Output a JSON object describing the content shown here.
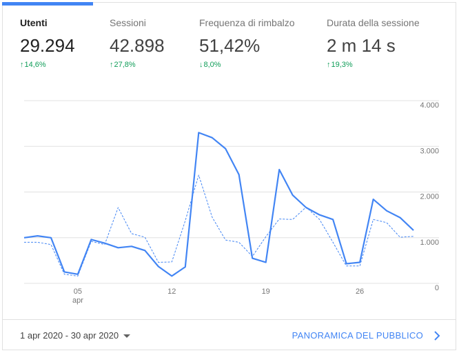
{
  "metrics": [
    {
      "label": "Utenti",
      "value": "29.294",
      "delta": "14,6%",
      "direction": "up",
      "active": true
    },
    {
      "label": "Sessioni",
      "value": "42.898",
      "delta": "27,8%",
      "direction": "up",
      "active": false
    },
    {
      "label": "Frequenza di rimbalzo",
      "value": "51,42%",
      "delta": "8,0%",
      "direction": "down",
      "active": false
    },
    {
      "label": "Durata della sessione",
      "value": "2 m 14 s",
      "delta": "19,3%",
      "direction": "up",
      "active": false
    }
  ],
  "chart_data": {
    "type": "line",
    "x": [
      1,
      2,
      3,
      4,
      5,
      6,
      7,
      8,
      9,
      10,
      11,
      12,
      13,
      14,
      15,
      16,
      17,
      18,
      19,
      20,
      21,
      22,
      23,
      24,
      25,
      26,
      27,
      28,
      29,
      30
    ],
    "x_tick_labels": [
      {
        "x": 5,
        "label": "05",
        "sublabel": "apr"
      },
      {
        "x": 12,
        "label": "12"
      },
      {
        "x": 19,
        "label": "19"
      },
      {
        "x": 26,
        "label": "26"
      }
    ],
    "y_tick_labels": [
      "0",
      "1.000",
      "2.000",
      "3.000",
      "4.000"
    ],
    "ylim": [
      0,
      4000
    ],
    "grid": true,
    "series": [
      {
        "color": "#4285f4",
        "dashed": false,
        "values": [
          1000,
          1040,
          1000,
          250,
          200,
          960,
          880,
          780,
          810,
          720,
          370,
          160,
          360,
          3300,
          3190,
          2950,
          2380,
          550,
          460,
          2490,
          1930,
          1660,
          1500,
          1400,
          430,
          460,
          1840,
          1590,
          1440,
          1160
        ]
      },
      {
        "color": "#4285f4",
        "dashed": true,
        "values": [
          900,
          900,
          850,
          200,
          160,
          920,
          850,
          1660,
          1090,
          1010,
          460,
          470,
          1370,
          2370,
          1450,
          950,
          900,
          590,
          1020,
          1410,
          1400,
          1670,
          1400,
          900,
          380,
          380,
          1400,
          1330,
          1010,
          1030
        ]
      }
    ]
  },
  "footer": {
    "date_range": "1 apr 2020 - 30 apr 2020",
    "overview_link": "PANORAMICA DEL PUBBLICO"
  },
  "colors": {
    "accent": "#4285f4",
    "positive": "#0f9d58",
    "negative": "#0f9d58",
    "grid": "#e0e0e0"
  },
  "icons": {
    "date_dropdown": "caret-down-icon",
    "overview": "chevron-right-icon"
  }
}
